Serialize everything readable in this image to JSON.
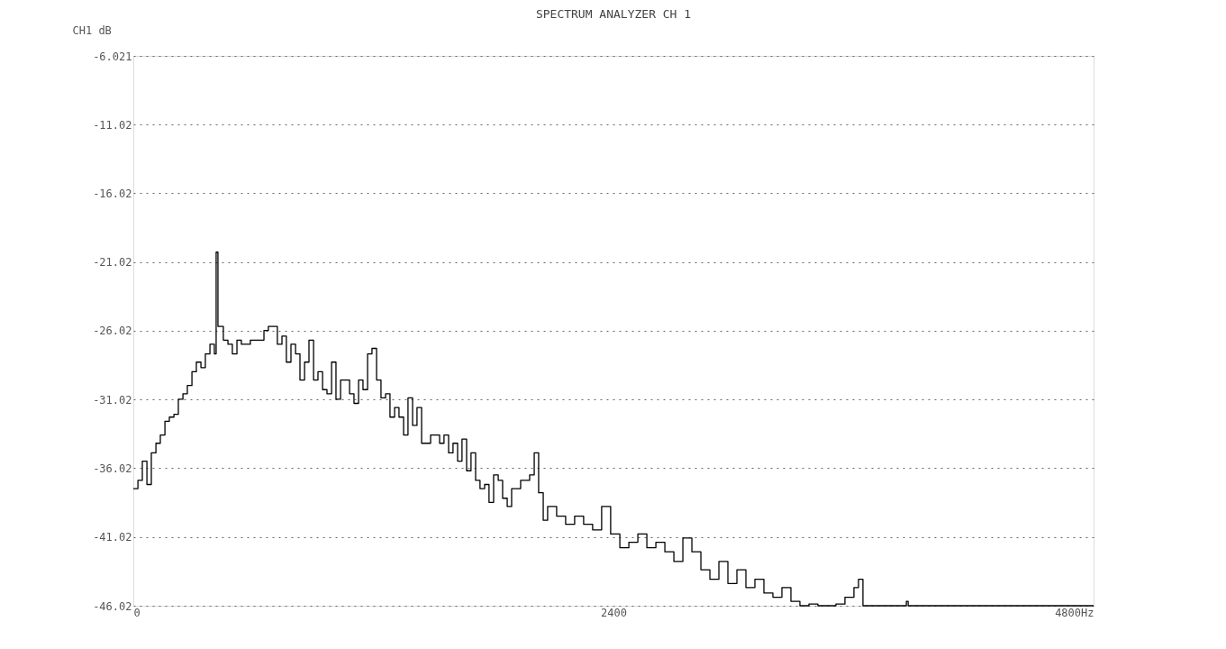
{
  "chart_data": {
    "type": "step",
    "title": "SPECTRUM ANALYZER CH 1",
    "ylabel": "CH1 dB",
    "x": [
      0,
      23,
      45,
      68,
      90,
      113,
      135,
      158,
      180,
      203,
      225,
      248,
      270,
      293,
      315,
      338,
      360,
      383,
      405,
      414,
      423,
      450,
      473,
      495,
      518,
      540,
      585,
      630,
      653,
      675,
      698,
      720,
      743,
      765,
      788,
      811,
      833,
      856,
      878,
      901,
      923,
      946,
      968,
      991,
      1013,
      1036,
      1081,
      1103,
      1126,
      1148,
      1171,
      1193,
      1216,
      1238,
      1261,
      1283,
      1306,
      1328,
      1351,
      1373,
      1396,
      1418,
      1441,
      1486,
      1531,
      1553,
      1576,
      1598,
      1621,
      1643,
      1666,
      1688,
      1711,
      1733,
      1756,
      1778,
      1801,
      1824,
      1846,
      1869,
      1891,
      1936,
      1981,
      2004,
      2026,
      2049,
      2071,
      2116,
      2161,
      2206,
      2251,
      2296,
      2341,
      2386,
      2432,
      2477,
      2522,
      2567,
      2612,
      2657,
      2702,
      2747,
      2792,
      2837,
      2882,
      2927,
      2972,
      3017,
      3062,
      3107,
      3152,
      3197,
      3242,
      3287,
      3332,
      3377,
      3422,
      3467,
      3512,
      3557,
      3602,
      3625,
      3647,
      3782,
      3864,
      3873,
      4800
    ],
    "series": [
      {
        "color": "#000000",
        "values": [
          -37.5,
          -36.9,
          -35.5,
          -37.2,
          -34.9,
          -34.2,
          -33.6,
          -32.6,
          -32.3,
          -32.1,
          -31.0,
          -30.6,
          -30.0,
          -29.0,
          -28.3,
          -28.7,
          -27.7,
          -27.0,
          -27.7,
          -20.3,
          -25.7,
          -26.7,
          -27.0,
          -27.7,
          -26.7,
          -27.0,
          -26.7,
          -26.7,
          -26.0,
          -25.7,
          -25.7,
          -27.0,
          -26.4,
          -28.3,
          -27.0,
          -27.7,
          -29.6,
          -28.3,
          -26.7,
          -29.6,
          -29.0,
          -30.3,
          -30.6,
          -28.3,
          -31.0,
          -29.6,
          -30.6,
          -31.3,
          -29.6,
          -30.3,
          -27.7,
          -27.3,
          -29.6,
          -30.9,
          -30.6,
          -32.3,
          -31.6,
          -32.3,
          -33.6,
          -30.9,
          -32.9,
          -31.6,
          -34.2,
          -33.6,
          -34.2,
          -33.6,
          -34.9,
          -34.2,
          -35.5,
          -33.9,
          -36.2,
          -34.9,
          -36.9,
          -37.5,
          -37.2,
          -38.5,
          -36.5,
          -36.9,
          -38.2,
          -38.8,
          -37.5,
          -36.9,
          -36.5,
          -34.9,
          -37.8,
          -39.8,
          -38.8,
          -39.5,
          -40.1,
          -39.5,
          -40.1,
          -40.5,
          -38.8,
          -40.8,
          -41.8,
          -41.4,
          -40.8,
          -41.8,
          -41.4,
          -42.1,
          -42.8,
          -41.1,
          -42.1,
          -43.4,
          -44.1,
          -42.8,
          -44.4,
          -43.4,
          -44.7,
          -44.1,
          -45.1,
          -45.4,
          -44.7,
          -45.7,
          -46.02,
          -45.9,
          -46.02,
          -46.02,
          -45.9,
          -45.4,
          -44.7,
          -44.1,
          -46.02,
          -46.02,
          -45.7,
          -46.02,
          -46.02
        ]
      }
    ],
    "xlim": [
      0,
      4800
    ],
    "ylim": [
      -46.02,
      -6.021
    ],
    "xticks": [
      0,
      2400,
      {
        "value": 4800,
        "label": "4800Hz"
      }
    ],
    "yticks": [
      -6.021,
      -11.02,
      -16.02,
      -21.02,
      -26.02,
      -31.02,
      -36.02,
      -41.02,
      -46.02
    ],
    "grid": "y",
    "marker": "none",
    "line_style": "solid"
  }
}
